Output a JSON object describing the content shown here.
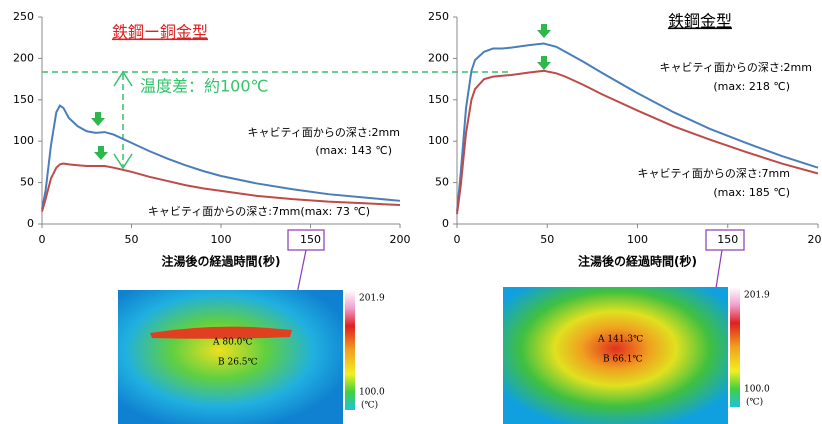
{
  "chart_data": [
    {
      "type": "line",
      "title": "鉄鋼ー銅金型",
      "title_color": "#e02020",
      "x_label": "注湯後の経過時間(秒)",
      "x": [
        0,
        2,
        5,
        8,
        10,
        12,
        15,
        20,
        25,
        30,
        35,
        40,
        50,
        60,
        70,
        80,
        90,
        100,
        120,
        140,
        160,
        180,
        200
      ],
      "series": [
        {
          "name": "キャビティ面からの深さ:2mm",
          "max_label": "(max: 143 ℃)",
          "color": "#4a7ebb",
          "values": [
            18,
            40,
            95,
            135,
            143,
            140,
            128,
            118,
            112,
            110,
            111,
            108,
            98,
            88,
            79,
            71,
            64,
            58,
            49,
            42,
            36,
            32,
            28
          ]
        },
        {
          "name": "キャビティ面からの深さ:7mm(max: 73 ℃)",
          "color": "#be4b48",
          "values": [
            15,
            30,
            55,
            68,
            72,
            73,
            72,
            71,
            70,
            70,
            70,
            68,
            63,
            57,
            52,
            47,
            43,
            40,
            34,
            30,
            27,
            25,
            23
          ]
        }
      ],
      "annotation": "温度差：約100℃",
      "xlim": [
        0,
        200
      ],
      "xticks": [
        0,
        50,
        100,
        150,
        200
      ],
      "ylim": [
        0,
        250
      ],
      "yticks": [
        0,
        50,
        100,
        150,
        200,
        250
      ]
    },
    {
      "type": "line",
      "title": "鉄鋼金型",
      "title_color": "#000000",
      "x_label": "注湯後の経過時間(秒)",
      "x": [
        0,
        2,
        5,
        8,
        10,
        15,
        20,
        25,
        30,
        40,
        48,
        55,
        60,
        70,
        80,
        100,
        120,
        140,
        160,
        180,
        200
      ],
      "series": [
        {
          "name": "キャビティ面からの深さ:2mm",
          "max_label": "(max: 218 ℃)",
          "color": "#4a7ebb",
          "values": [
            15,
            60,
            140,
            185,
            198,
            208,
            212,
            212,
            213,
            216,
            218,
            214,
            208,
            196,
            183,
            158,
            135,
            115,
            98,
            82,
            68
          ]
        },
        {
          "name": "キャビティ面からの深さ:7mm",
          "max_label": "(max: 185 ℃)",
          "color": "#be4b48",
          "values": [
            12,
            45,
            110,
            150,
            163,
            175,
            178,
            179,
            180,
            183,
            185,
            182,
            178,
            168,
            157,
            137,
            118,
            102,
            87,
            73,
            61
          ]
        }
      ],
      "xlim": [
        0,
        200
      ],
      "xticks": [
        0,
        50,
        100,
        150,
        200
      ],
      "ylim": [
        0,
        250
      ],
      "yticks": [
        0,
        50,
        100,
        150,
        200,
        250
      ]
    }
  ],
  "thermal_images": [
    {
      "point_a": "A 80.0℃",
      "point_b": "B 26.5℃",
      "scale_max": "201.9",
      "scale_mid": "100.0",
      "unit": "(℃)"
    },
    {
      "point_a": "A 141.3℃",
      "point_b": "B 66.1℃",
      "scale_max": "201.9",
      "scale_mid": "100.0",
      "unit": "(℃)"
    }
  ]
}
